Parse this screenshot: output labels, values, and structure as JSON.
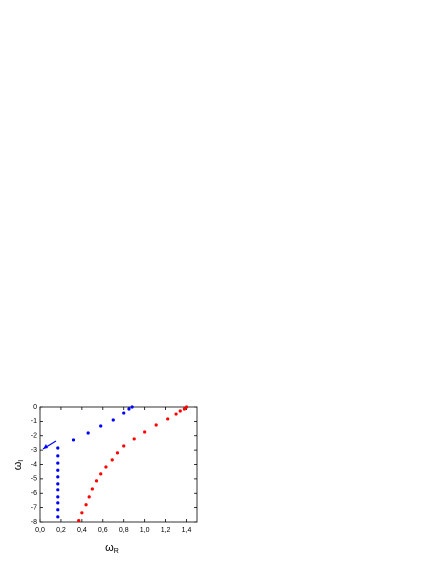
{
  "chart_data": {
    "type": "scatter",
    "xlabel": "ω",
    "xlabel_sub": "R",
    "ylabel": "ω",
    "ylabel_sub": "I",
    "xlim": [
      0,
      1.5
    ],
    "ylim": [
      -8,
      0
    ],
    "xticks": [
      {
        "value": 0,
        "label": "0,0"
      },
      {
        "value": 0.2,
        "label": "0,2"
      },
      {
        "value": 0.4,
        "label": "0,4"
      },
      {
        "value": 0.6,
        "label": "0,6"
      },
      {
        "value": 0.8,
        "label": "0,8"
      },
      {
        "value": 1.0,
        "label": "1,0"
      },
      {
        "value": 1.2,
        "label": "1,2"
      },
      {
        "value": 1.4,
        "label": "1,4"
      }
    ],
    "yticks": [
      0,
      -1,
      -2,
      -3,
      -4,
      -5,
      -6,
      -7,
      -8
    ],
    "series": [
      {
        "color": "#0000ff",
        "x": [
          0.17,
          0.17,
          0.17,
          0.17,
          0.17,
          0.17,
          0.17,
          0.17,
          0.17,
          0.17,
          0.17,
          0.32,
          0.46,
          0.58,
          0.7,
          0.8,
          0.85,
          0.88
        ],
        "values": [
          -2.85,
          -3.4,
          -3.9,
          -4.4,
          -4.86,
          -5.35,
          -5.76,
          -6.25,
          -6.67,
          -7.15,
          -7.64,
          -2.29,
          -1.81,
          -1.32,
          -0.9,
          -0.42,
          -0.14,
          0.0
        ]
      },
      {
        "color": "#ff0000",
        "x": [
          0.37,
          0.4,
          0.44,
          0.47,
          0.5,
          0.54,
          0.58,
          0.63,
          0.69,
          0.74,
          0.8,
          0.9,
          1.0,
          1.11,
          1.22,
          1.3,
          1.34,
          1.38,
          1.4
        ],
        "values": [
          -7.9,
          -7.36,
          -6.8,
          -6.25,
          -5.7,
          -5.14,
          -4.65,
          -4.17,
          -3.68,
          -3.19,
          -2.71,
          -2.22,
          -1.74,
          -1.25,
          -0.83,
          -0.49,
          -0.28,
          -0.14,
          0.0
        ]
      }
    ]
  }
}
